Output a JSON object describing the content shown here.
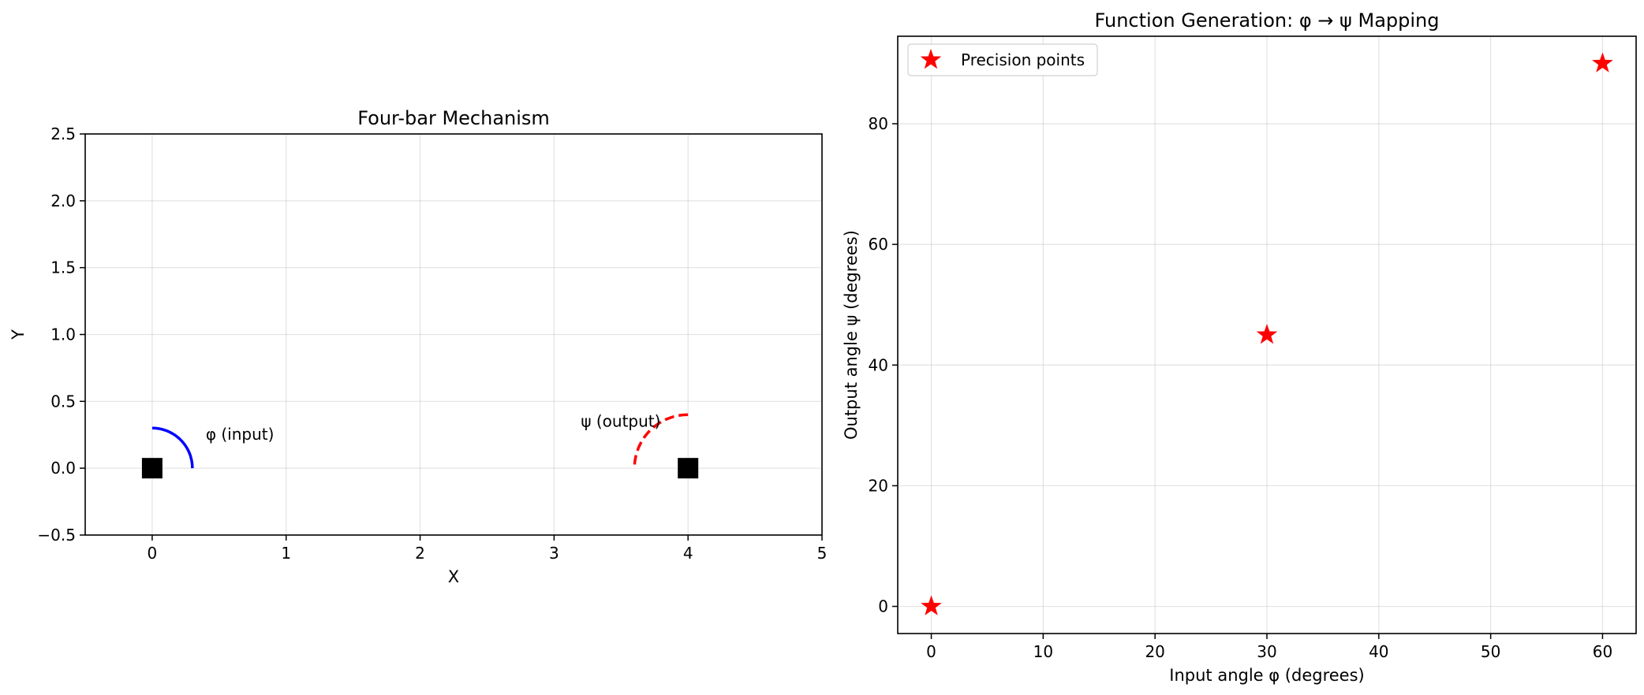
{
  "chart_data": [
    {
      "type": "scatter",
      "title": "Four-bar Mechanism",
      "xlabel": "X",
      "ylabel": "Y",
      "xlim": [
        -0.5,
        5
      ],
      "ylim": [
        -0.5,
        2.5
      ],
      "xticks": [
        0,
        1,
        2,
        3,
        4,
        5
      ],
      "xtick_labels": [
        "0",
        "1",
        "2",
        "3",
        "4",
        "5"
      ],
      "yticks": [
        -0.5,
        0.0,
        0.5,
        1.0,
        1.5,
        2.0,
        2.5
      ],
      "ytick_labels": [
        "−0.5",
        "0.0",
        "0.5",
        "1.0",
        "1.5",
        "2.0",
        "2.5"
      ],
      "grid": true,
      "ground_pivots": [
        {
          "x": 0,
          "y": 0
        },
        {
          "x": 4,
          "y": 0
        }
      ],
      "arcs": [
        {
          "name": "input",
          "center": [
            0,
            0
          ],
          "radius": 0.3,
          "angle_start": 0,
          "angle_end": 90,
          "style": "solid",
          "color": "#0000ff"
        },
        {
          "name": "output",
          "center": [
            4,
            0
          ],
          "radius": 0.4,
          "angle_start": 90,
          "angle_end": 180,
          "style": "dashed",
          "color": "#ff0000"
        }
      ],
      "annotations": [
        {
          "text": "φ (input)",
          "x": 0.4,
          "y": 0.2
        },
        {
          "text": "ψ (output)",
          "x": 3.2,
          "y": 0.3
        }
      ],
      "colors": {
        "pivot": "#000000",
        "input": "#0000ff",
        "output": "#ff0000"
      }
    },
    {
      "type": "scatter",
      "title": "Function Generation: φ → ψ Mapping",
      "xlabel": "Input angle φ (degrees)",
      "ylabel": "Output angle ψ (degrees)",
      "xlim": [
        -3,
        63
      ],
      "ylim": [
        -4.5,
        94.5
      ],
      "xticks": [
        0,
        10,
        20,
        30,
        40,
        50,
        60
      ],
      "xtick_labels": [
        "0",
        "10",
        "20",
        "30",
        "40",
        "50",
        "60"
      ],
      "yticks": [
        0,
        20,
        40,
        60,
        80
      ],
      "ytick_labels": [
        "0",
        "20",
        "40",
        "60",
        "80"
      ],
      "grid": true,
      "legend_position": "top-left",
      "series": [
        {
          "name": "Precision points",
          "marker": "star",
          "color": "#ff0000",
          "x": [
            0,
            30,
            60
          ],
          "y": [
            0,
            45,
            90
          ]
        }
      ]
    }
  ]
}
